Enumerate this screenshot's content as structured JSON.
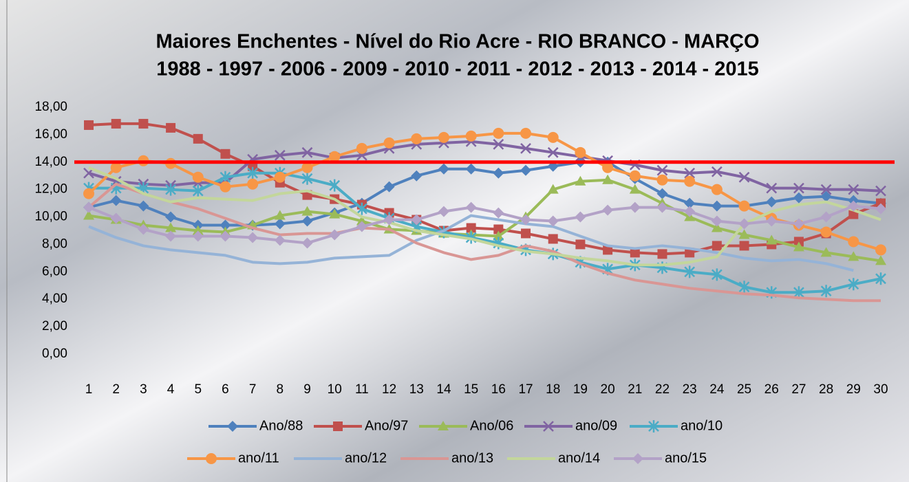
{
  "chart_data": {
    "type": "line",
    "title": "Maiores Enchentes - Nível do Rio Acre -  RIO BRANCO - MARÇO",
    "subtitle": "1988 - 1997 - 2006 - 2009 - 2010 - 2011 - 2012 - 2013 - 2014 - 2015",
    "categories": [
      "1",
      "2",
      "3",
      "4",
      "5",
      "6",
      "7",
      "8",
      "9",
      "10",
      "11",
      "12",
      "13",
      "14",
      "15",
      "16",
      "17",
      "18",
      "19",
      "20",
      "21",
      "22",
      "23",
      "24",
      "25",
      "26",
      "27",
      "28",
      "29",
      "30"
    ],
    "ylim": [
      0,
      18
    ],
    "yticks": [
      {
        "value": 0,
        "label": "0,00"
      },
      {
        "value": 2,
        "label": "2,00"
      },
      {
        "value": 4,
        "label": "4,00"
      },
      {
        "value": 6,
        "label": "6,00"
      },
      {
        "value": 8,
        "label": "8,00"
      },
      {
        "value": 10,
        "label": "10,00"
      },
      {
        "value": 12,
        "label": "12,00"
      },
      {
        "value": 14,
        "label": "14,00"
      },
      {
        "value": 16,
        "label": "16,00"
      },
      {
        "value": 18,
        "label": "18,00"
      }
    ],
    "reference_line": {
      "value": 14,
      "color": "#ff0000"
    },
    "legend": "bottom",
    "series": [
      {
        "name": "Ano/88",
        "color": "#4f81bd",
        "marker": "diamond",
        "values": [
          10.7,
          11.2,
          10.8,
          10.0,
          9.4,
          9.4,
          9.4,
          9.5,
          9.7,
          10.3,
          11.0,
          12.2,
          13.0,
          13.5,
          13.5,
          13.2,
          13.4,
          13.7,
          14.0,
          14.0,
          12.8,
          11.7,
          11.0,
          10.8,
          10.8,
          11.1,
          11.4,
          11.5,
          11.2,
          11.0
        ]
      },
      {
        "name": "Ano/97",
        "color": "#c0504d",
        "marker": "square",
        "values": [
          16.7,
          16.8,
          16.8,
          16.5,
          15.7,
          14.6,
          13.7,
          12.5,
          11.6,
          11.3,
          10.9,
          10.3,
          9.8,
          9.0,
          9.2,
          9.1,
          8.8,
          8.4,
          8.0,
          7.6,
          7.4,
          7.3,
          7.4,
          7.9,
          7.9,
          8.0,
          8.2,
          8.8,
          10.2,
          11.0
        ]
      },
      {
        "name": "Ano/06",
        "color": "#9bbb59",
        "marker": "triangle",
        "values": [
          10.1,
          9.8,
          9.4,
          9.2,
          9.0,
          8.9,
          9.4,
          10.1,
          10.4,
          10.2,
          9.7,
          9.1,
          9.0,
          8.8,
          8.7,
          8.6,
          10.0,
          12.0,
          12.6,
          12.7,
          12.0,
          11.0,
          10.0,
          9.2,
          8.7,
          8.3,
          7.8,
          7.4,
          7.1,
          6.8
        ]
      },
      {
        "name": "ano/09",
        "color": "#8064a2",
        "marker": "x",
        "values": [
          13.2,
          12.6,
          12.4,
          12.3,
          12.5,
          12.5,
          14.2,
          14.5,
          14.7,
          14.3,
          14.5,
          15.0,
          15.3,
          15.4,
          15.5,
          15.3,
          15.0,
          14.7,
          14.4,
          14.1,
          13.8,
          13.4,
          13.2,
          13.3,
          12.9,
          12.1,
          12.1,
          12.0,
          12.0,
          11.9
        ]
      },
      {
        "name": "ano/10",
        "color": "#4bacc6",
        "marker": "star",
        "values": [
          12.1,
          12.1,
          12.1,
          12.0,
          11.9,
          12.9,
          13.2,
          13.2,
          12.8,
          12.3,
          10.6,
          9.9,
          9.3,
          8.9,
          8.5,
          8.1,
          7.6,
          7.3,
          6.7,
          6.2,
          6.5,
          6.3,
          6.0,
          5.8,
          4.9,
          4.5,
          4.5,
          4.6,
          5.1,
          5.5
        ]
      },
      {
        "name": "ano/11",
        "color": "#f79646",
        "marker": "circle",
        "values": [
          11.7,
          13.6,
          14.1,
          13.9,
          12.9,
          12.2,
          12.4,
          12.9,
          13.6,
          14.4,
          15.0,
          15.4,
          15.7,
          15.8,
          15.9,
          16.1,
          16.1,
          15.8,
          14.7,
          13.6,
          13.0,
          12.7,
          12.6,
          12.0,
          10.8,
          9.9,
          9.4,
          8.9,
          8.2,
          7.6
        ]
      },
      {
        "name": "ano/12",
        "color": "#95b3d7",
        "marker": "none",
        "values": [
          9.3,
          8.5,
          7.9,
          7.6,
          7.4,
          7.2,
          6.7,
          6.6,
          6.7,
          7.0,
          7.1,
          7.2,
          8.3,
          9.0,
          10.1,
          9.8,
          9.5,
          9.3,
          8.6,
          7.9,
          7.7,
          7.9,
          7.7,
          7.4,
          7.0,
          6.8,
          6.9,
          6.6,
          6.1,
          null
        ]
      },
      {
        "name": "ano/13",
        "color": "#d99694",
        "marker": "none",
        "values": [
          10.7,
          12.4,
          11.7,
          11.1,
          10.6,
          9.9,
          9.2,
          8.7,
          8.8,
          8.8,
          9.2,
          9.1,
          8.1,
          7.4,
          6.9,
          7.2,
          7.9,
          7.5,
          6.6,
          5.9,
          5.4,
          5.1,
          4.8,
          4.6,
          4.4,
          4.3,
          4.1,
          4.0,
          3.9,
          3.9
        ]
      },
      {
        "name": "ano/14",
        "color": "#c3d69b",
        "marker": "none",
        "values": [
          13.6,
          12.8,
          11.7,
          11.1,
          11.4,
          11.3,
          11.2,
          11.7,
          11.9,
          11.3,
          10.0,
          9.6,
          9.0,
          8.7,
          8.4,
          7.9,
          7.5,
          7.3,
          7.0,
          6.8,
          6.5,
          6.5,
          6.7,
          7.1,
          9.5,
          10.4,
          10.9,
          11.1,
          10.5,
          9.8
        ]
      },
      {
        "name": "ano/15",
        "color": "#b3a2c7",
        "marker": "diamond",
        "values": [
          10.7,
          9.9,
          9.1,
          8.6,
          8.6,
          8.6,
          8.5,
          8.3,
          8.1,
          8.7,
          9.3,
          9.8,
          9.8,
          10.4,
          10.7,
          10.3,
          9.8,
          9.7,
          10.0,
          10.5,
          10.7,
          10.7,
          10.4,
          9.7,
          9.5,
          9.7,
          9.5,
          10.0,
          10.8,
          10.6
        ]
      }
    ]
  }
}
